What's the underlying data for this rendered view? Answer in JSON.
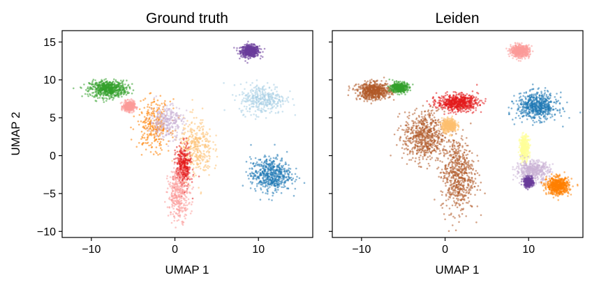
{
  "chart_data": [
    {
      "type": "scatter",
      "title": "Ground truth",
      "xlabel": "UMAP 1",
      "ylabel": "UMAP 2",
      "xlim": [
        -13.5,
        16.5
      ],
      "ylim": [
        -10.8,
        16.5
      ],
      "xticks": [
        -10,
        0,
        10
      ],
      "yticks": [
        -10,
        -5,
        0,
        5,
        10,
        15
      ],
      "xtick_labels": [
        "−10",
        "0",
        "10"
      ],
      "ytick_labels": [
        "−10",
        "−5",
        "0",
        "5",
        "10",
        "15"
      ],
      "grid": false,
      "legend": "none",
      "clusters": [
        {
          "color": "#6a3d9a",
          "cx": 9.0,
          "cy": 13.8,
          "sx": 1.0,
          "sy": 0.7,
          "density": 0.8
        },
        {
          "color": "#33a02c",
          "cx": -8.0,
          "cy": 8.8,
          "sx": 2.0,
          "sy": 1.0,
          "density": 0.9
        },
        {
          "color": "#fb9a99",
          "cx": -5.5,
          "cy": 6.5,
          "sx": 0.6,
          "sy": 0.6,
          "density": 0.6
        },
        {
          "color": "#a6cee3",
          "cx": 10.5,
          "cy": 7.5,
          "sx": 2.5,
          "sy": 1.8,
          "density": 0.5
        },
        {
          "color": "#1f78b4",
          "cx": 11.5,
          "cy": -2.5,
          "sx": 2.2,
          "sy": 2.0,
          "density": 0.8
        },
        {
          "color": "#fdbf6f",
          "cx": 2.5,
          "cy": 1.0,
          "sx": 1.8,
          "sy": 3.5,
          "density": 0.5
        },
        {
          "color": "#ff7f00",
          "cx": -2.5,
          "cy": 4.0,
          "sx": 1.8,
          "sy": 3.0,
          "density": 0.4
        },
        {
          "color": "#e31a1c",
          "cx": 1.0,
          "cy": -1.5,
          "sx": 0.8,
          "sy": 2.5,
          "density": 0.5
        },
        {
          "color": "#fb9a99",
          "cx": 0.5,
          "cy": -5.0,
          "sx": 1.2,
          "sy": 3.0,
          "density": 0.5
        },
        {
          "color": "#cab2d6",
          "cx": -1.0,
          "cy": 4.5,
          "sx": 1.8,
          "sy": 2.0,
          "density": 0.4
        }
      ]
    },
    {
      "type": "scatter",
      "title": "Leiden",
      "xlabel": "UMAP 1",
      "ylabel": "",
      "xlim": [
        -13.5,
        16.5
      ],
      "ylim": [
        -10.8,
        16.5
      ],
      "xticks": [
        -10,
        0,
        10
      ],
      "xtick_labels": [
        "−10",
        "0",
        "10"
      ],
      "grid": false,
      "legend": "none",
      "clusters": [
        {
          "color": "#fb9a99",
          "cx": 9.0,
          "cy": 13.8,
          "sx": 1.0,
          "sy": 0.7,
          "density": 0.8
        },
        {
          "color": "#b15928",
          "cx": -8.5,
          "cy": 8.5,
          "sx": 1.8,
          "sy": 1.0,
          "density": 0.9
        },
        {
          "color": "#33a02c",
          "cx": -5.5,
          "cy": 9.0,
          "sx": 0.9,
          "sy": 0.6,
          "density": 0.6
        },
        {
          "color": "#e31a1c",
          "cx": 1.5,
          "cy": 7.0,
          "sx": 2.2,
          "sy": 1.0,
          "density": 0.9
        },
        {
          "color": "#b15928",
          "cx": -2.5,
          "cy": 2.5,
          "sx": 2.2,
          "sy": 3.0,
          "density": 0.9
        },
        {
          "color": "#b15928",
          "cx": 1.5,
          "cy": -2.5,
          "sx": 1.8,
          "sy": 4.5,
          "density": 0.9
        },
        {
          "color": "#fdbf6f",
          "cx": 0.5,
          "cy": 4.0,
          "sx": 0.8,
          "sy": 0.8,
          "density": 0.6
        },
        {
          "color": "#1f78b4",
          "cx": 11.0,
          "cy": 6.5,
          "sx": 2.2,
          "sy": 1.6,
          "density": 0.9
        },
        {
          "color": "#ffff99",
          "cx": 9.5,
          "cy": 1.0,
          "sx": 0.5,
          "sy": 1.5,
          "density": 0.6
        },
        {
          "color": "#cab2d6",
          "cx": 10.5,
          "cy": -2.0,
          "sx": 1.8,
          "sy": 1.2,
          "density": 0.7
        },
        {
          "color": "#ff7f00",
          "cx": 13.5,
          "cy": -4.0,
          "sx": 1.2,
          "sy": 1.0,
          "density": 0.9
        },
        {
          "color": "#6a3d9a",
          "cx": 10.0,
          "cy": -3.5,
          "sx": 0.5,
          "sy": 0.6,
          "density": 0.5
        }
      ]
    }
  ]
}
